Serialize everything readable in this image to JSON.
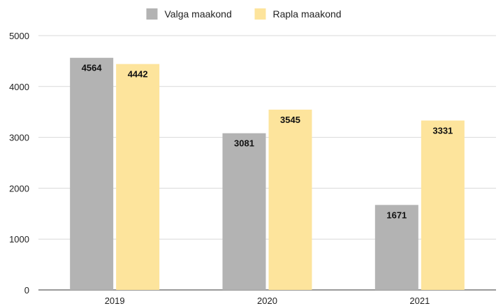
{
  "chart_data": {
    "type": "bar",
    "title": "",
    "xlabel": "",
    "ylabel": "",
    "categories": [
      "2019",
      "2020",
      "2021"
    ],
    "series": [
      {
        "name": "Valga maakond",
        "values": [
          4564,
          3081,
          1671
        ],
        "color": "#b3b3b3"
      },
      {
        "name": "Rapla maakond",
        "values": [
          4442,
          3545,
          3331
        ],
        "color": "#fde49c"
      }
    ],
    "ylim": [
      0,
      5000
    ],
    "yticks": [
      0,
      1000,
      2000,
      3000,
      4000,
      5000
    ],
    "grid": true,
    "legend": "top-center",
    "data_labels": true
  }
}
